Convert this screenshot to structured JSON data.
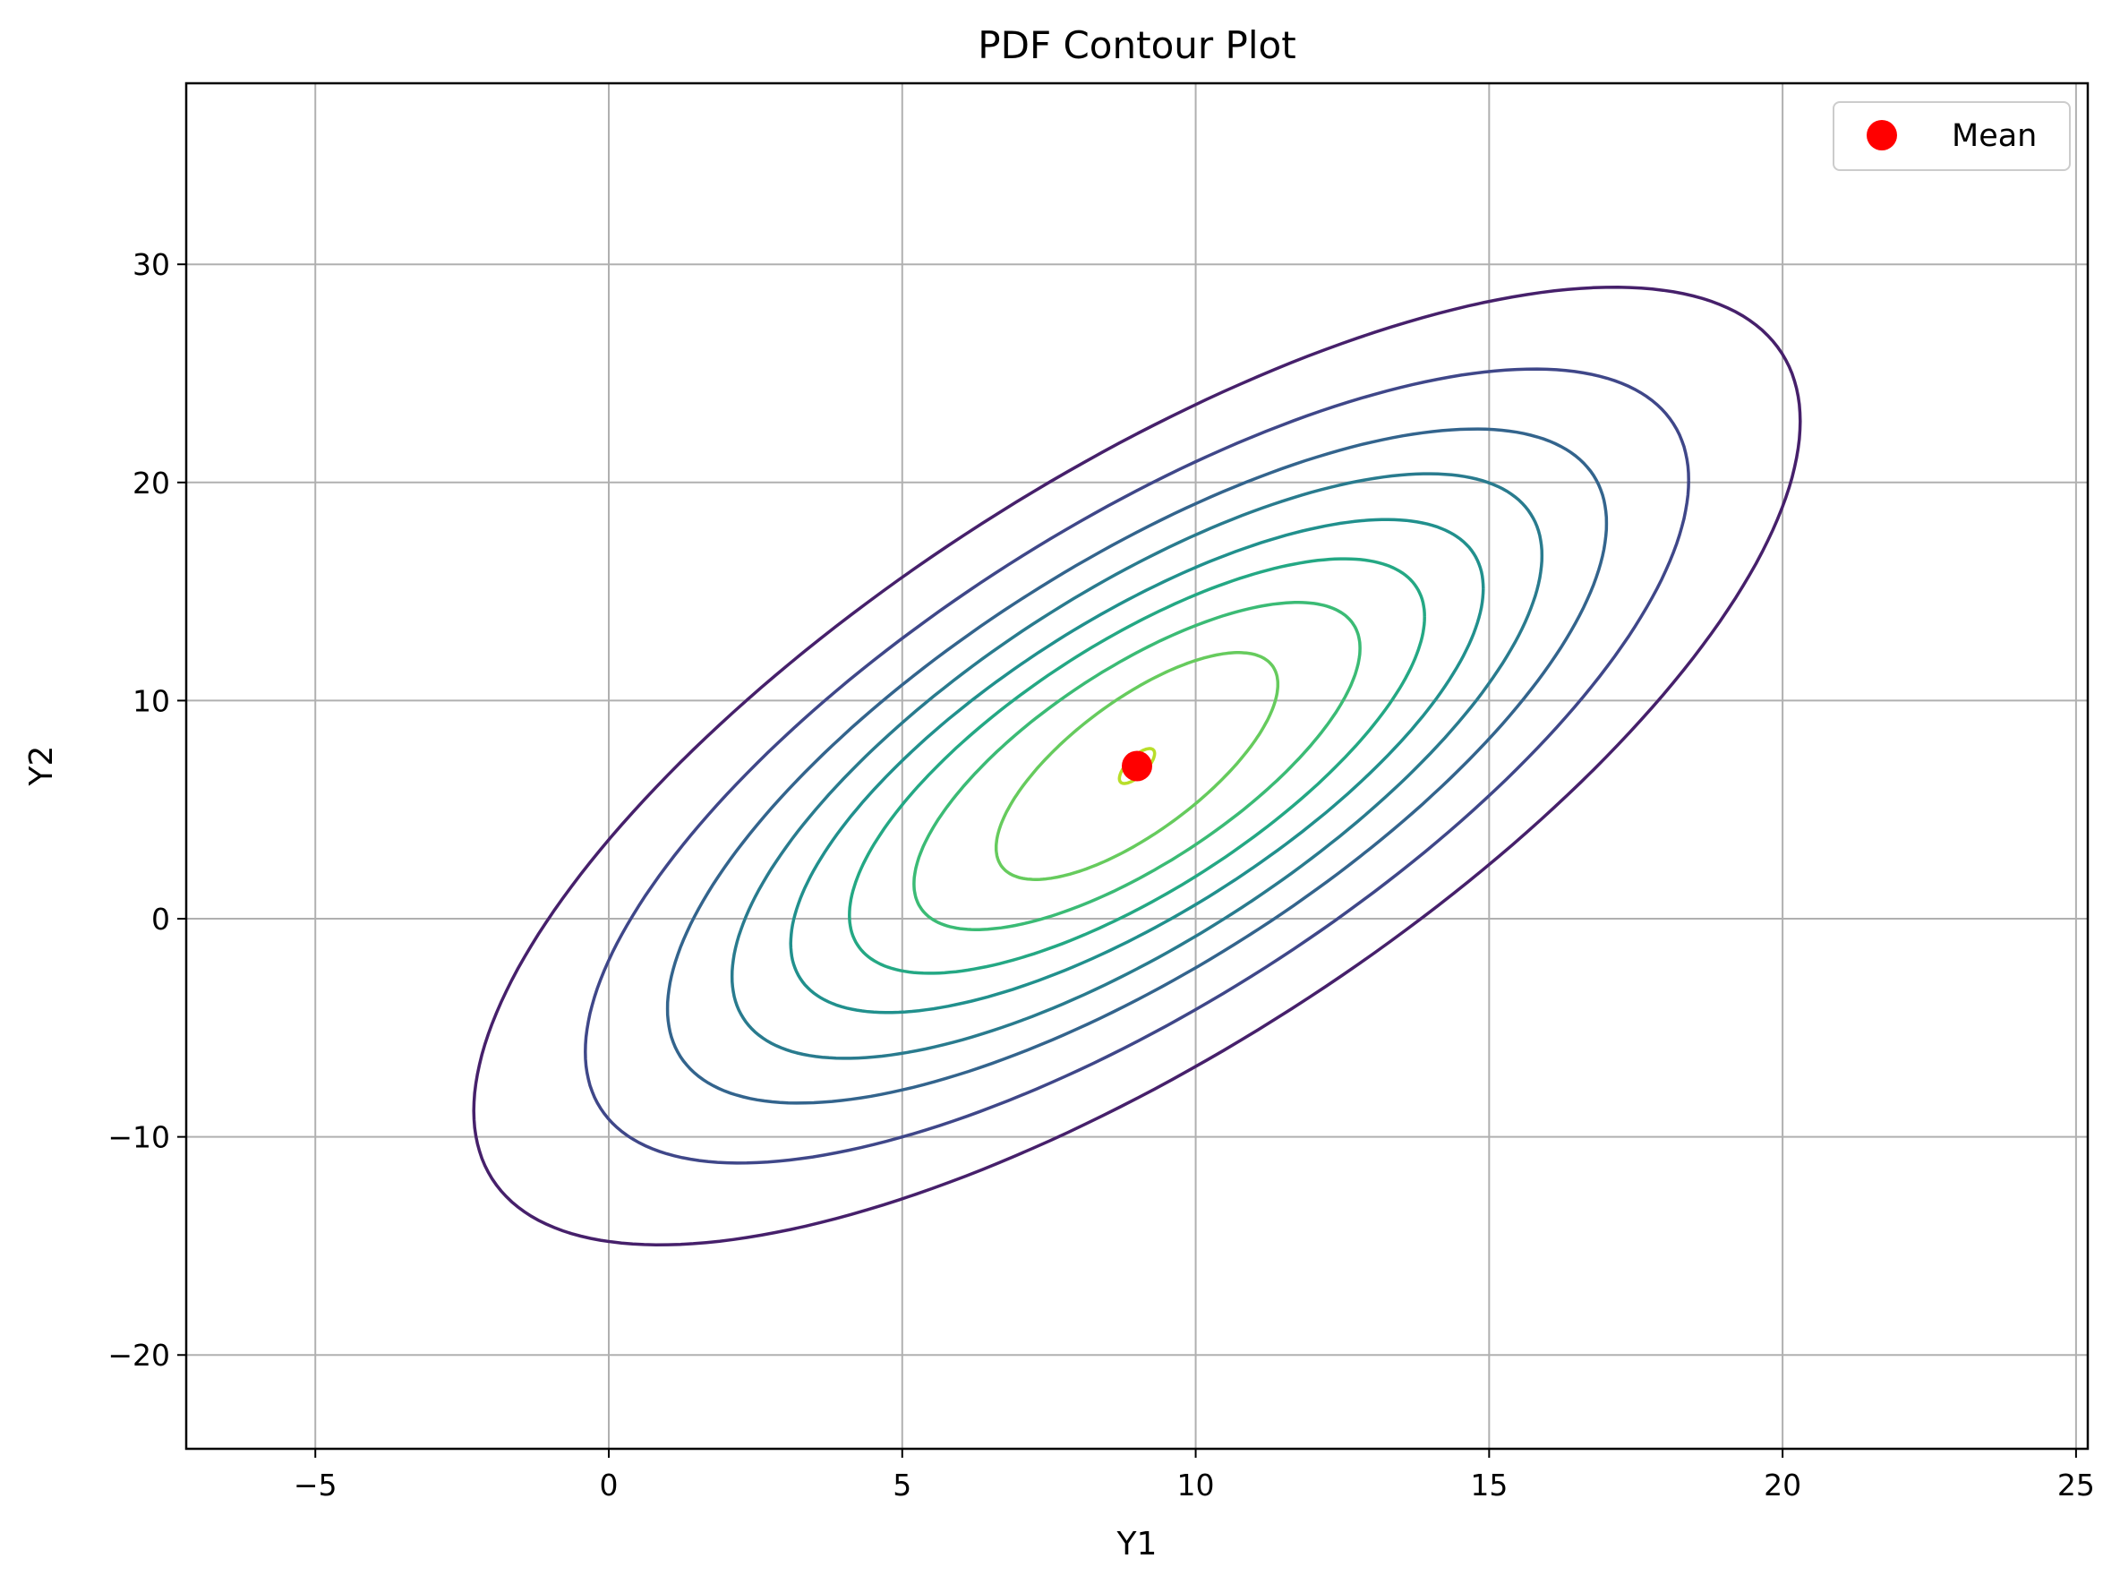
{
  "chart_data": {
    "type": "contour",
    "title": "PDF Contour Plot",
    "xlabel": "Y1",
    "ylabel": "Y2",
    "xlim": [
      -7.2,
      25.2
    ],
    "ylim": [
      -24.3,
      38.3
    ],
    "xticks": [
      -5,
      0,
      5,
      10,
      15,
      20,
      25
    ],
    "yticks": [
      -20,
      -10,
      0,
      10,
      20,
      30
    ],
    "xtick_labels": [
      "−5",
      "0",
      "5",
      "10",
      "15",
      "20",
      "25"
    ],
    "ytick_labels": [
      "−20",
      "−10",
      "0",
      "10",
      "20",
      "30"
    ],
    "grid": true,
    "legend": {
      "position": "top-right",
      "entries": [
        {
          "label": "Mean",
          "marker": "circle",
          "color": "#ff0000"
        }
      ]
    },
    "mean": {
      "x": 9.0,
      "y": 7.0
    },
    "contour_levels": [
      {
        "name": "level-1",
        "color": "#46206b",
        "extent": {
          "x": [
            -2.3,
            20.3
          ],
          "y": [
            -15.0,
            28.9
          ]
        }
      },
      {
        "name": "level-2",
        "color": "#3f4789",
        "extent": {
          "x": [
            -0.4,
            18.4
          ],
          "y": [
            -11.3,
            25.1
          ]
        }
      },
      {
        "name": "level-3",
        "color": "#33648d",
        "extent": {
          "x": [
            1.0,
            17.0
          ],
          "y": [
            -8.5,
            22.4
          ]
        }
      },
      {
        "name": "level-4",
        "color": "#297b8e",
        "extent": {
          "x": [
            2.1,
            15.9
          ],
          "y": [
            -6.4,
            20.4
          ]
        }
      },
      {
        "name": "level-5",
        "color": "#21908d",
        "extent": {
          "x": [
            3.1,
            14.9
          ],
          "y": [
            -4.3,
            18.3
          ]
        }
      },
      {
        "name": "level-6",
        "color": "#24a884",
        "extent": {
          "x": [
            4.1,
            13.9
          ],
          "y": [
            -2.5,
            16.5
          ]
        }
      },
      {
        "name": "level-7",
        "color": "#3bbb75",
        "extent": {
          "x": [
            5.2,
            12.8
          ],
          "y": [
            -0.5,
            14.5
          ]
        }
      },
      {
        "name": "level-8",
        "color": "#66cb5d",
        "extent": {
          "x": [
            6.6,
            11.4
          ],
          "y": [
            1.8,
            12.2
          ]
        }
      },
      {
        "name": "level-9",
        "color": "#b8de29",
        "extent": {
          "x": [
            8.7,
            9.3
          ],
          "y": [
            6.2,
            7.8
          ]
        }
      }
    ]
  }
}
